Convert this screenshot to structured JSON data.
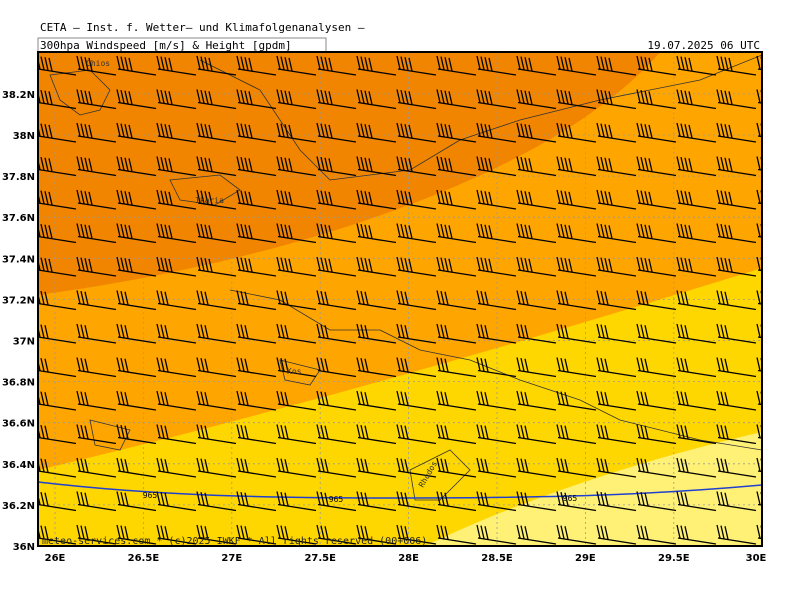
{
  "header": {
    "title": "CETA — Inst. f. Wetter— und Klimafolgenanalysen —",
    "product": "300hpa_Windspeed_[m/s]_&_Height_[gpdm]",
    "valid": "19.07.2025 06 UTC"
  },
  "map": {
    "lon_labels": [
      "26E",
      "26.5E",
      "27E",
      "27.5E",
      "28E",
      "28.5E",
      "29E",
      "29.5E",
      "30E"
    ],
    "lat_labels": [
      "36N",
      "36.2N",
      "36.4N",
      "36.6N",
      "36.8N",
      "37N",
      "37.2N",
      "37.4N",
      "37.6N",
      "37.8N",
      "38N",
      "38.2N"
    ],
    "contour_labels": [
      "965",
      "965",
      "965"
    ],
    "places": [
      "Chios",
      "Ikaria",
      "Kos",
      "Rhodos"
    ],
    "credit": "meteo-services.com * (c)2025 IWKF * All rights reserved (00+006)"
  }
}
